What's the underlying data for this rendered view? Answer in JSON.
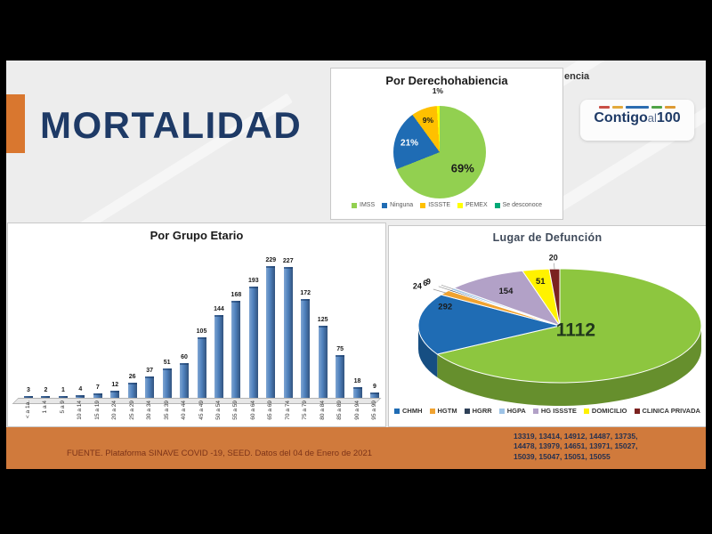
{
  "slide": {
    "title": "MORTALIDAD",
    "header_fragment": "encia",
    "logo": {
      "text_main": "Contigo",
      "text_mid": "al",
      "text_num": "100",
      "dash_colors": [
        "#c94f46",
        "#e2a93b",
        "#2b6cb0",
        "#4fa346",
        "#dd9a33"
      ],
      "dash_widths": [
        12,
        12,
        26,
        12,
        12
      ]
    },
    "colors": {
      "accent_orange": "#d9772f",
      "title_navy": "#1e3a66",
      "footer_orange": "#d07a3c",
      "slide_background": "#ededed"
    },
    "footer": {
      "source": "FUENTE. Plataforma SINAVE COVID -19, SEED. Datos del 04 de Enero de 2021",
      "numbers_lines": [
        "13319, 13414, 14912, 14487, 13735,",
        "14478, 13979, 14651, 13971, 15027,",
        "15039, 15047, 15051, 15055"
      ]
    }
  },
  "chart_data": [
    {
      "type": "pie",
      "title": "Por Derechohabiencia",
      "labels": [
        "IMSS",
        "Ninguna",
        "ISSSTE",
        "PEMEX",
        "Se desconoce"
      ],
      "values": [
        69,
        21,
        9,
        1,
        0
      ],
      "value_labels": [
        "69%",
        "21%",
        "9%",
        "1%",
        ""
      ],
      "colors": [
        "#92d050",
        "#1f6cb4",
        "#ffc000",
        "#ffff00",
        "#00a876"
      ],
      "legend_position": "bottom"
    },
    {
      "type": "bar",
      "title": "Por Grupo Etario",
      "categories": [
        "< a 1a.",
        "1 a 4",
        "5 a 9",
        "10 a 14",
        "15 a 19",
        "20 a 24",
        "25 a 29",
        "30 a 34",
        "35 a 39",
        "40 a 44",
        "45 a 49",
        "50 a 54",
        "55 a 59",
        "60 a 64",
        "65 a 69",
        "70 a 74",
        "75 a 79",
        "80 a 84",
        "85 a 89",
        "90 a 94",
        "95 a 99"
      ],
      "values": [
        3,
        2,
        1,
        4,
        7,
        12,
        26,
        37,
        51,
        60,
        105,
        144,
        168,
        193,
        229,
        227,
        172,
        125,
        75,
        18,
        9
      ],
      "bar_color": "#4f81bd",
      "xlabel": "",
      "ylabel": "",
      "ylim": [
        0,
        240
      ],
      "grid": false,
      "data_labels": true
    },
    {
      "type": "pie",
      "style": "pie3d",
      "title": "Lugar de Defunción",
      "labels": [
        "",
        "CHMH",
        "HGTM",
        "HGRR",
        "HGPA",
        "HG ISSSTE",
        "DOMICILIO",
        "CLINICA PRIVADA"
      ],
      "values": [
        1112,
        292,
        24,
        6,
        9,
        154,
        51,
        20
      ],
      "colors": [
        "#8dc63f",
        "#1f6cb4",
        "#f0a331",
        "#2e4057",
        "#9dc3e6",
        "#b2a1c7",
        "#fff200",
        "#7b2220"
      ],
      "legend_position": "bottom"
    }
  ]
}
